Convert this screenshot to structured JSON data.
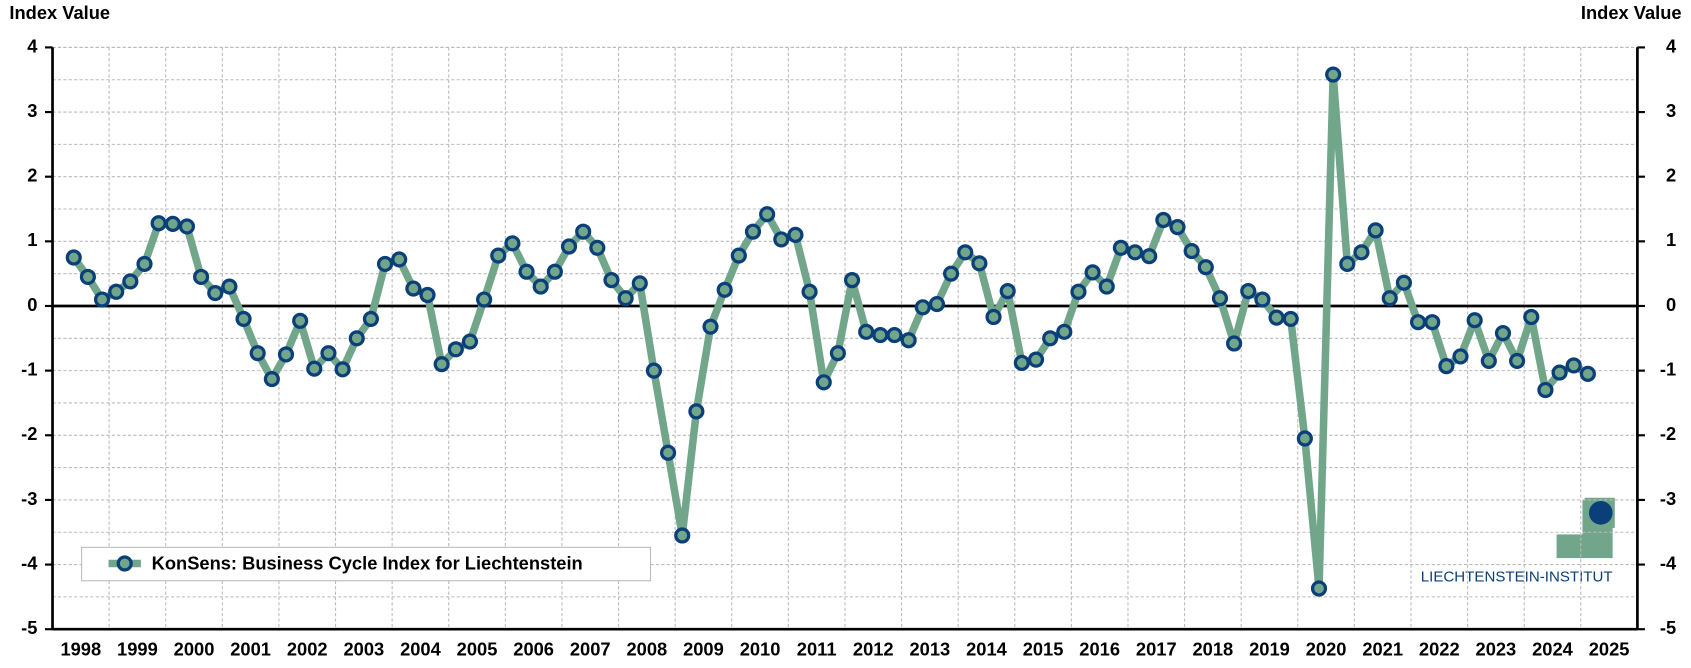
{
  "chart_data": {
    "type": "line",
    "y_label": "Index Value",
    "y2_label": "Index Value",
    "categories": [
      "1998",
      null,
      null,
      null,
      "1999",
      null,
      null,
      null,
      "2000",
      null,
      null,
      null,
      "2001",
      null,
      null,
      null,
      "2002",
      null,
      null,
      null,
      "2003",
      null,
      null,
      null,
      "2004",
      null,
      null,
      null,
      "2005",
      null,
      null,
      null,
      "2006",
      null,
      null,
      null,
      "2007",
      null,
      null,
      null,
      "2008",
      null,
      null,
      null,
      "2009",
      null,
      null,
      null,
      "2010",
      null,
      null,
      null,
      "2011",
      null,
      null,
      null,
      "2012",
      null,
      null,
      null,
      "2013",
      null,
      null,
      null,
      "2014",
      null,
      null,
      null,
      "2015",
      null,
      null,
      null,
      "2016",
      null,
      null,
      null,
      "2017",
      null,
      null,
      null,
      "2018",
      null,
      null,
      null,
      "2019",
      null,
      null,
      null,
      "2020",
      null,
      null,
      null,
      "2021",
      null,
      null,
      null,
      "2022",
      null,
      null,
      null,
      "2023",
      null,
      null,
      null,
      "2024",
      null,
      null,
      null,
      "2025",
      null,
      null,
      null
    ],
    "series": [
      {
        "name": "KonSens: Business Cycle Index for Liechtenstein",
        "color": "#72a68b",
        "marker_edge": "#0b3f7a",
        "values": [
          null,
          0.75,
          0.45,
          0.1,
          0.22,
          0.38,
          0.65,
          1.28,
          1.27,
          1.23,
          0.45,
          0.2,
          0.3,
          -0.2,
          -0.73,
          -1.13,
          -0.75,
          -0.23,
          -0.97,
          -0.73,
          -0.98,
          -0.5,
          -0.2,
          0.65,
          0.72,
          0.27,
          0.17,
          -0.9,
          -0.67,
          -0.55,
          0.1,
          0.78,
          0.97,
          0.53,
          0.3,
          0.53,
          0.92,
          1.15,
          0.9,
          0.4,
          0.12,
          0.35,
          -1.0,
          -2.27,
          -3.55,
          -1.63,
          -0.32,
          0.25,
          0.78,
          1.15,
          1.42,
          1.03,
          1.1,
          0.22,
          -1.18,
          -0.73,
          0.4,
          -0.4,
          -0.45,
          -0.45,
          -0.53,
          -0.02,
          0.03,
          0.5,
          0.83,
          0.66,
          -0.17,
          0.23,
          -0.88,
          -0.83,
          -0.5,
          -0.4,
          0.22,
          0.52,
          0.3,
          0.9,
          0.83,
          0.77,
          1.33,
          1.22,
          0.85,
          0.6,
          0.12,
          -0.58,
          0.23,
          0.1,
          -0.18,
          -0.2,
          -2.05,
          -4.37,
          3.58,
          0.65,
          0.83,
          1.17,
          0.12,
          0.36,
          -0.25,
          -0.25,
          -0.93,
          -0.78,
          -0.22,
          -0.85,
          -0.42,
          -0.85,
          -0.17,
          -1.3,
          -1.03,
          -0.92,
          -1.05,
          null,
          null,
          null
        ]
      }
    ],
    "ylim": [
      -5,
      4
    ],
    "yticks": [
      -5,
      -4,
      -3,
      -2,
      -1,
      0,
      1,
      2,
      3,
      4
    ],
    "y2lim": [
      -5,
      4
    ],
    "y2ticks": [
      -5,
      -4,
      -3,
      -2,
      -1,
      0,
      1,
      2,
      3,
      4
    ],
    "grid": true,
    "legend": "lower left",
    "logo_text": "LIECHTENSTEIN-INSTITUT"
  }
}
